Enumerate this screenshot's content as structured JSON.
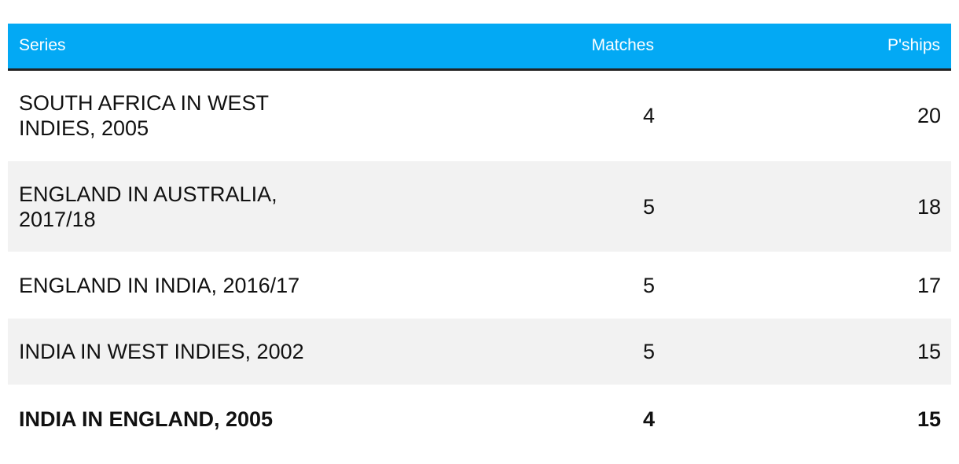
{
  "table": {
    "columns": [
      "Series",
      "Matches",
      "P'ships"
    ],
    "rows": [
      [
        "SOUTH AFRICA IN WEST INDIES, 2005",
        4,
        20
      ],
      [
        "ENGLAND IN AUSTRALIA, 2017/18",
        5,
        18
      ],
      [
        "ENGLAND IN INDIA, 2016/17",
        5,
        17
      ],
      [
        "INDIA IN WEST INDIES, 2002",
        5,
        15
      ],
      [
        "INDIA IN ENGLAND, 2005",
        4,
        15
      ]
    ]
  }
}
